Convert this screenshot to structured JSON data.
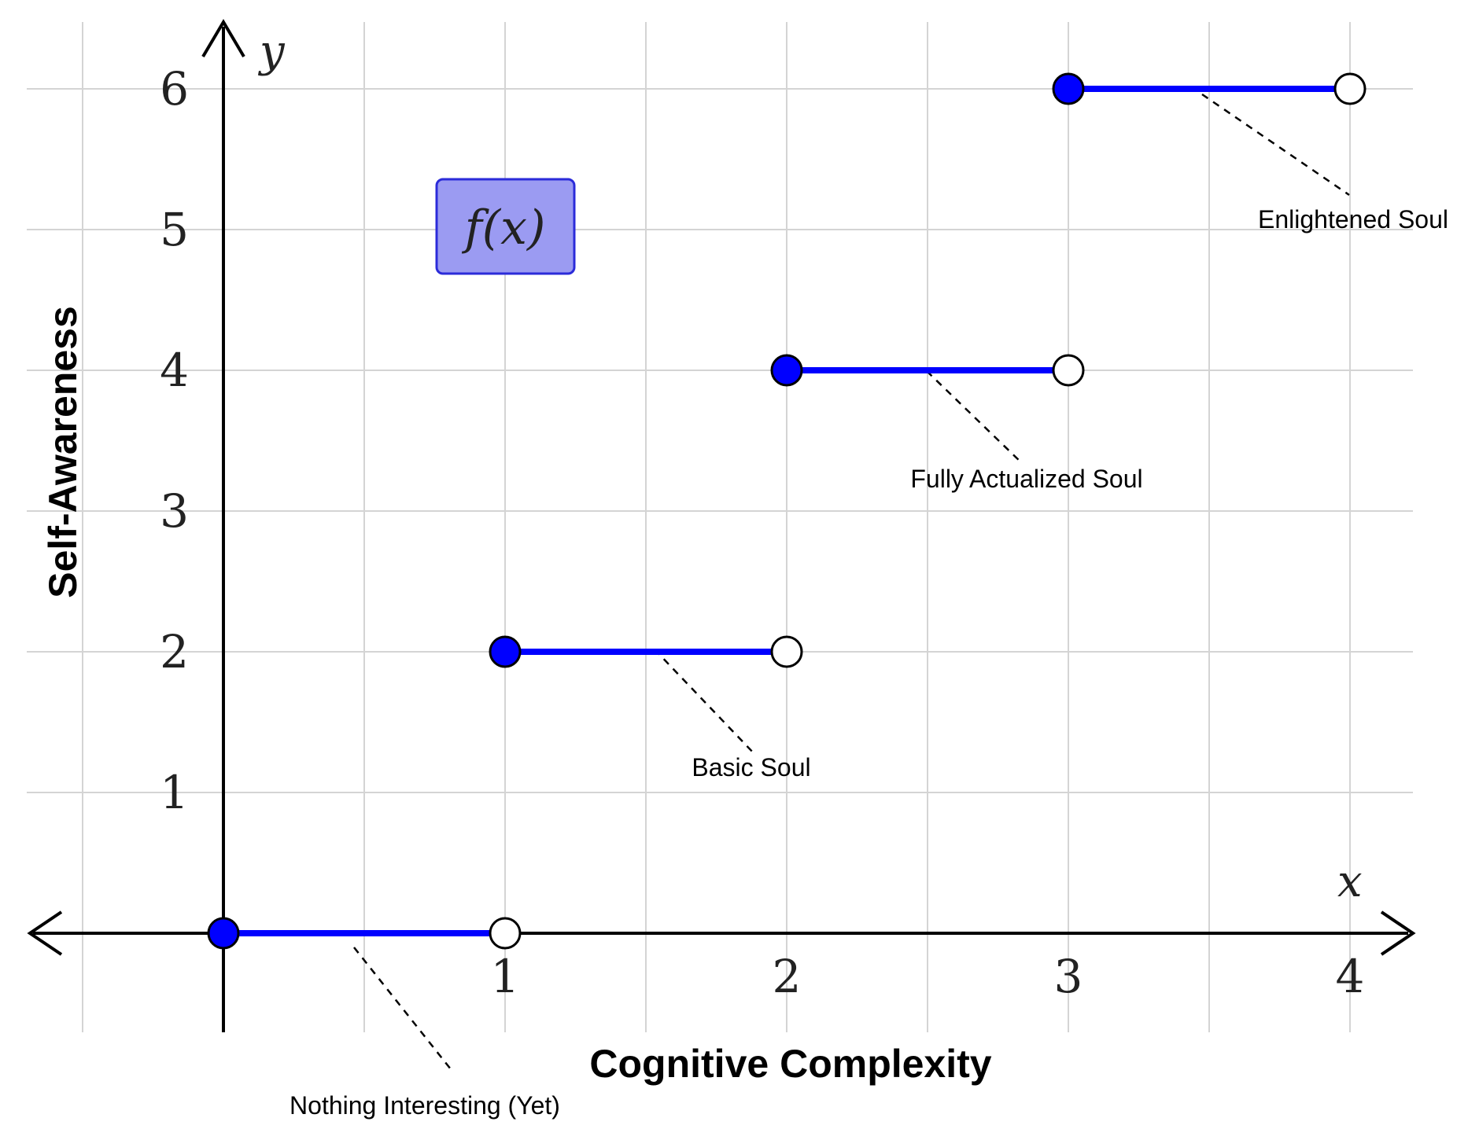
{
  "chart_data": {
    "type": "line",
    "subtype": "step-function",
    "xlabel": "Cognitive Complexity",
    "ylabel": "Self-Awareness",
    "x_axis_symbol": "x",
    "y_axis_symbol": "y",
    "function_label": "f(x)",
    "xlim": [
      -0.7,
      4.2
    ],
    "ylim": [
      -0.7,
      6.5
    ],
    "x_ticks": [
      "1",
      "2",
      "3",
      "4"
    ],
    "y_ticks": [
      "1",
      "2",
      "3",
      "4",
      "5",
      "6"
    ],
    "grid": true,
    "series": [
      {
        "color": "#0000ff",
        "segments": [
          {
            "x_start": 0,
            "x_end": 1,
            "y": 0,
            "start": "closed",
            "end": "open",
            "annotation": "Nothing Interesting (Yet)"
          },
          {
            "x_start": 1,
            "x_end": 2,
            "y": 2,
            "start": "closed",
            "end": "open",
            "annotation": "Basic Soul"
          },
          {
            "x_start": 2,
            "x_end": 3,
            "y": 4,
            "start": "closed",
            "end": "open",
            "annotation": "Fully Actualized Soul"
          },
          {
            "x_start": 3,
            "x_end": 4,
            "y": 6,
            "start": "closed",
            "end": "open",
            "annotation": "Enlightened Soul"
          }
        ]
      }
    ],
    "colors": {
      "line": "#0000ff",
      "fx_box_fill": "#9b9bf2",
      "fx_box_border": "#2b2bd9",
      "grid": "#d4d4d4"
    }
  }
}
